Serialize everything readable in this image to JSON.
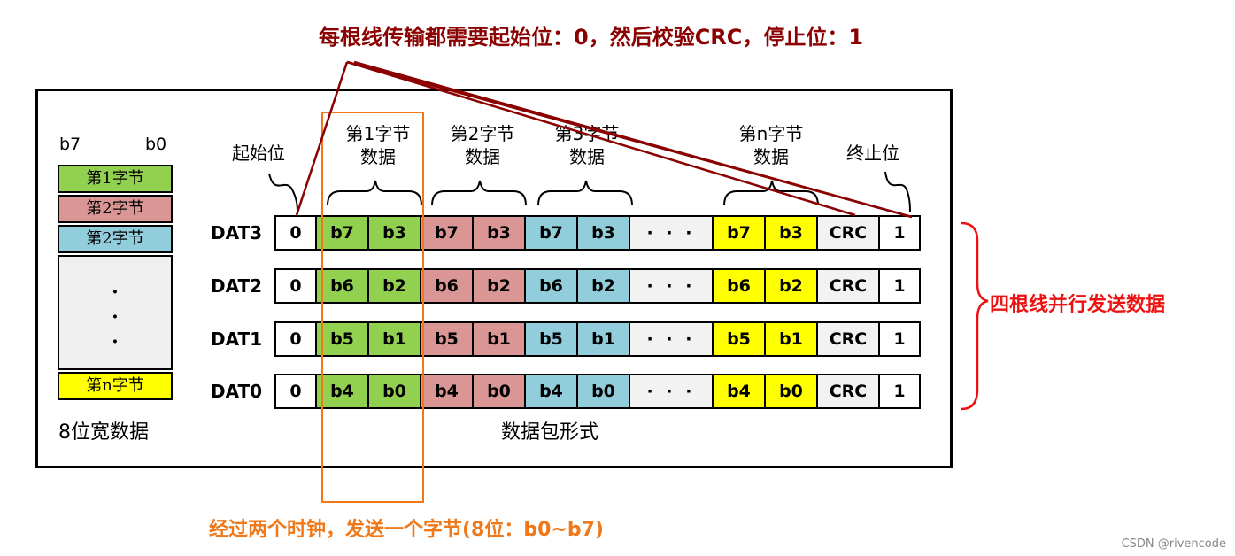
{
  "title_note": "每根线传输都需要起始位：0，然后校验CRC，停止位：1",
  "side_note": "四根线并行发送数据",
  "bottom_note": "经过两个时钟，发送一个字节(8位：b0~b7)",
  "watermark": "CSDN @rivencode",
  "left_panel": {
    "msb": "b7",
    "lsb": "b0",
    "bytes": [
      "第1字节",
      "第2字节",
      "第2字节",
      "第n字节"
    ],
    "dots": [
      "·",
      "·",
      "·"
    ],
    "caption": "8位宽数据"
  },
  "packet": {
    "caption": "数据包形式",
    "headers": {
      "start": "起始位",
      "byte1": [
        "第1字节",
        "数据"
      ],
      "byte2": [
        "第2字节",
        "数据"
      ],
      "byte3": [
        "第3字节",
        "数据"
      ],
      "byten": [
        "第n字节",
        "数据"
      ],
      "stop": "终止位"
    },
    "rows": [
      {
        "label": "DAT3",
        "start": "0",
        "b1": [
          "b7",
          "b3"
        ],
        "b2": [
          "b7",
          "b3"
        ],
        "b3": [
          "b7",
          "b3"
        ],
        "dots": "· · ·",
        "bn": [
          "b7",
          "b3"
        ],
        "crc": "CRC",
        "stop": "1"
      },
      {
        "label": "DAT2",
        "start": "0",
        "b1": [
          "b6",
          "b2"
        ],
        "b2": [
          "b6",
          "b2"
        ],
        "b3": [
          "b6",
          "b2"
        ],
        "dots": "· · ·",
        "bn": [
          "b6",
          "b2"
        ],
        "crc": "CRC",
        "stop": "1"
      },
      {
        "label": "DAT1",
        "start": "0",
        "b1": [
          "b5",
          "b1"
        ],
        "b2": [
          "b5",
          "b1"
        ],
        "b3": [
          "b5",
          "b1"
        ],
        "dots": "· · ·",
        "bn": [
          "b5",
          "b1"
        ],
        "crc": "CRC",
        "stop": "1"
      },
      {
        "label": "DAT0",
        "start": "0",
        "b1": [
          "b4",
          "b0"
        ],
        "b2": [
          "b4",
          "b0"
        ],
        "b3": [
          "b4",
          "b0"
        ],
        "dots": "· · ·",
        "bn": [
          "b4",
          "b0"
        ],
        "crc": "CRC",
        "stop": "1"
      }
    ]
  },
  "colors": {
    "byte1": "#92d050",
    "byte2": "#da9694",
    "byte3": "#92cddc",
    "byten": "#ffff00",
    "neutral": "#f2f2f2",
    "title_red": "#8b0000",
    "side_red": "#ee1111",
    "orange": "#f07818"
  }
}
